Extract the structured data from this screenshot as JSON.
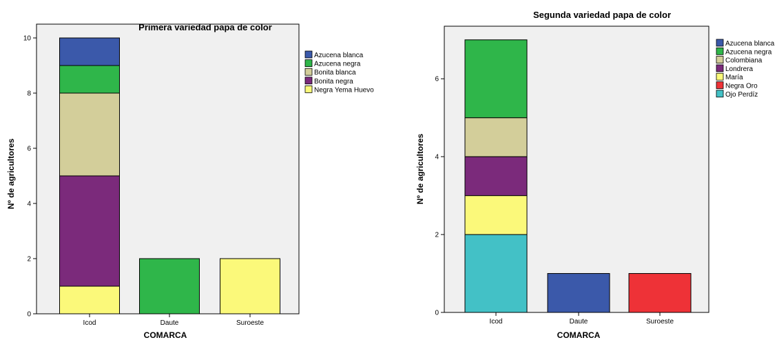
{
  "chart_data": [
    {
      "type": "bar",
      "stacked": true,
      "title": "Primera variedad papa de color",
      "xlabel": "COMARCA",
      "ylabel": "Nº de agricultores",
      "categories": [
        "Icod",
        "Daute",
        "Suroeste"
      ],
      "ylim": [
        0,
        10.5
      ],
      "yticks": [
        "0",
        "2",
        "4",
        "6",
        "8",
        "10"
      ],
      "legend_position": "right",
      "series": [
        {
          "name": "Negra Yema Huevo",
          "color": "#fbf97a",
          "values": [
            1,
            0,
            2
          ]
        },
        {
          "name": "Bonita negra",
          "color": "#7b2a7b",
          "values": [
            4,
            0,
            0
          ]
        },
        {
          "name": "Bonita blanca",
          "color": "#d3ce9a",
          "values": [
            3,
            0,
            0
          ]
        },
        {
          "name": "Azucena negra",
          "color": "#2fb64a",
          "values": [
            1,
            2,
            0
          ]
        },
        {
          "name": "Azucena blanca",
          "color": "#3b59aa",
          "values": [
            1,
            0,
            0
          ]
        }
      ],
      "legend_order": [
        "Azucena blanca",
        "Azucena negra",
        "Bonita blanca",
        "Bonita negra",
        "Negra Yema Huevo"
      ]
    },
    {
      "type": "bar",
      "stacked": true,
      "title": "Segunda variedad  papa de color",
      "xlabel": "COMARCA",
      "ylabel": "Nº de agricultores",
      "categories": [
        "Icod",
        "Daute",
        "Suroeste"
      ],
      "ylim": [
        0,
        7.35
      ],
      "yticks": [
        "0",
        "2",
        "4",
        "6"
      ],
      "legend_position": "right",
      "series": [
        {
          "name": "Ojo Perdiz",
          "color": "#43c1c6",
          "values": [
            2,
            0,
            0
          ]
        },
        {
          "name": "María",
          "color": "#fbf97a",
          "values": [
            1,
            0,
            0
          ]
        },
        {
          "name": "Londrera",
          "color": "#7b2a7b",
          "values": [
            1,
            0,
            0
          ]
        },
        {
          "name": "Colombiana",
          "color": "#d3ce9a",
          "values": [
            1,
            0,
            0
          ]
        },
        {
          "name": "Azucena negra",
          "color": "#2fb64a",
          "values": [
            2,
            0,
            0
          ]
        },
        {
          "name": "Negra Oro",
          "color": "#ee3237",
          "values": [
            0,
            0,
            1
          ]
        },
        {
          "name": "Azucena blanca",
          "color": "#3b59aa",
          "values": [
            0,
            1,
            0
          ]
        }
      ],
      "legend_order": [
        "Azucena blanca",
        "Azucena negra",
        "Colombiana",
        "Londrera",
        "María",
        "Negra Oro",
        "Ojo Perdíz"
      ]
    }
  ]
}
